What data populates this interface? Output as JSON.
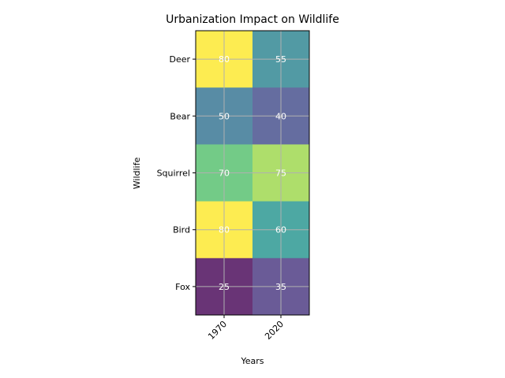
{
  "chart_data": {
    "type": "heatmap",
    "title": "Urbanization Impact on Wildlife",
    "xlabel": "Years",
    "ylabel": "Wildlife",
    "x_categories": [
      "1970",
      "2020"
    ],
    "y_categories": [
      "Deer",
      "Bear",
      "Squirrel",
      "Bird",
      "Fox"
    ],
    "values": [
      [
        80,
        55
      ],
      [
        50,
        40
      ],
      [
        70,
        75
      ],
      [
        80,
        60
      ],
      [
        25,
        35
      ]
    ],
    "value_range": [
      25,
      80
    ],
    "colormap": "viridis",
    "cell_alpha": 0.8,
    "grid": true,
    "x_tick_rotation": 45
  }
}
